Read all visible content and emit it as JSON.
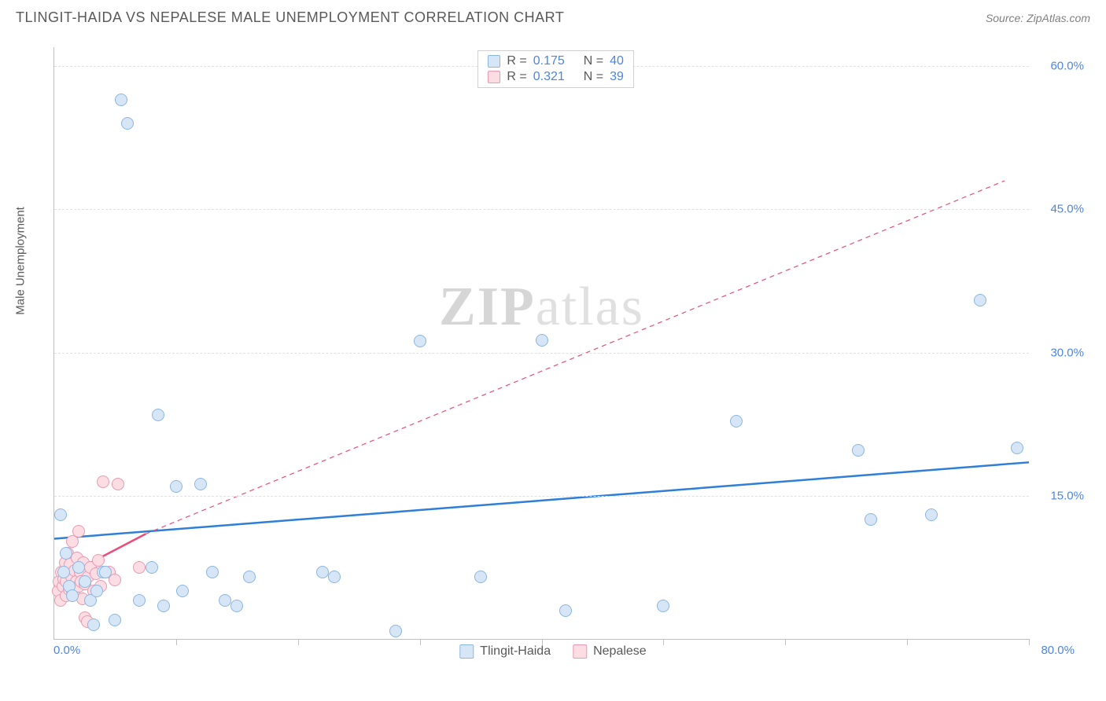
{
  "header": {
    "title": "TLINGIT-HAIDA VS NEPALESE MALE UNEMPLOYMENT CORRELATION CHART",
    "source_label": "Source: ZipAtlas.com"
  },
  "chart": {
    "type": "scatter",
    "ylabel": "Male Unemployment",
    "xlim": [
      0,
      80
    ],
    "ylim": [
      0,
      62
    ],
    "xtick_step": 10,
    "ytick_positions": [
      15,
      30,
      45,
      60
    ],
    "ytick_labels": [
      "15.0%",
      "30.0%",
      "45.0%",
      "60.0%"
    ],
    "x_origin_label": "0.0%",
    "x_max_label": "80.0%",
    "point_radius": 8,
    "series": [
      {
        "name": "Tlingit-Haida",
        "fill": "#d6e6f7",
        "stroke": "#8bb6e0",
        "line_color": "#2f7ed8",
        "line_style": "solid",
        "line_width": 2.5,
        "R": "0.175",
        "N": "40",
        "fit": {
          "x1": 0,
          "y1": 10.5,
          "x2": 80,
          "y2": 18.5
        },
        "ext_fit": null,
        "points": [
          [
            0.5,
            13
          ],
          [
            0.8,
            7
          ],
          [
            1,
            9
          ],
          [
            1.2,
            5.5
          ],
          [
            1.5,
            4.5
          ],
          [
            2,
            7.5
          ],
          [
            2.5,
            6
          ],
          [
            3,
            4
          ],
          [
            3.2,
            1.5
          ],
          [
            3.5,
            5
          ],
          [
            4,
            7
          ],
          [
            4.2,
            7
          ],
          [
            5,
            2
          ],
          [
            5.5,
            56.5
          ],
          [
            6,
            54
          ],
          [
            7,
            4
          ],
          [
            8,
            7.5
          ],
          [
            8.5,
            23.5
          ],
          [
            9,
            3.5
          ],
          [
            10,
            16
          ],
          [
            10.5,
            5
          ],
          [
            12,
            16.2
          ],
          [
            13,
            7
          ],
          [
            14,
            4
          ],
          [
            15,
            3.5
          ],
          [
            16,
            6.5
          ],
          [
            22,
            7
          ],
          [
            23,
            6.5
          ],
          [
            28,
            0.8
          ],
          [
            30,
            31.2
          ],
          [
            35,
            6.5
          ],
          [
            40,
            31.3
          ],
          [
            42,
            3
          ],
          [
            50,
            3.5
          ],
          [
            56,
            22.8
          ],
          [
            66,
            19.8
          ],
          [
            67,
            12.5
          ],
          [
            72,
            13
          ],
          [
            76,
            35.5
          ],
          [
            79,
            20
          ]
        ]
      },
      {
        "name": "Nepalese",
        "fill": "#fcdde4",
        "stroke": "#e99ab0",
        "line_color": "#e94d78",
        "line_style": "solid",
        "line_width": 2.5,
        "R": "0.321",
        "N": "39",
        "fit": {
          "x1": 0,
          "y1": 6,
          "x2": 7.5,
          "y2": 11
        },
        "ext_fit": {
          "x1": 7.5,
          "y1": 11,
          "x2": 78,
          "y2": 48,
          "dash": "6,5",
          "width": 1.2
        },
        "points": [
          [
            0.3,
            5
          ],
          [
            0.4,
            6
          ],
          [
            0.5,
            4
          ],
          [
            0.6,
            7
          ],
          [
            0.7,
            5.5
          ],
          [
            0.8,
            6.3
          ],
          [
            0.9,
            8
          ],
          [
            1.0,
            4.5
          ],
          [
            1.0,
            6.0
          ],
          [
            1.1,
            9
          ],
          [
            1.2,
            5.2
          ],
          [
            1.3,
            7.8
          ],
          [
            1.4,
            6.5
          ],
          [
            1.5,
            5.0
          ],
          [
            1.5,
            10.2
          ],
          [
            1.6,
            4.8
          ],
          [
            1.7,
            7.2
          ],
          [
            1.8,
            6.0
          ],
          [
            1.9,
            8.5
          ],
          [
            2.0,
            5.5
          ],
          [
            2.0,
            11.3
          ],
          [
            2.1,
            7
          ],
          [
            2.2,
            6
          ],
          [
            2.3,
            4.2
          ],
          [
            2.4,
            8
          ],
          [
            2.5,
            5.8
          ],
          [
            2.5,
            2.2
          ],
          [
            2.7,
            1.8
          ],
          [
            2.8,
            6.5
          ],
          [
            3.0,
            7.5
          ],
          [
            3.2,
            5.0
          ],
          [
            3.4,
            6.8
          ],
          [
            3.6,
            8.2
          ],
          [
            3.8,
            5.5
          ],
          [
            4.0,
            16.5
          ],
          [
            4.5,
            7.0
          ],
          [
            5.0,
            6.2
          ],
          [
            5.2,
            16.2
          ],
          [
            7.0,
            7.5
          ]
        ]
      }
    ],
    "legend_top": {
      "rows": [
        {
          "swatch_series": 0,
          "text_r": "R =",
          "r_val": "0.175",
          "text_n": "N =",
          "n_val": "40"
        },
        {
          "swatch_series": 1,
          "text_r": "R =",
          "r_val": "0.321",
          "text_n": "N =",
          "n_val": "39"
        }
      ]
    },
    "watermark": {
      "left": "ZIP",
      "right": "atlas"
    },
    "background_color": "#ffffff",
    "grid_color": "#e0e0e0"
  }
}
